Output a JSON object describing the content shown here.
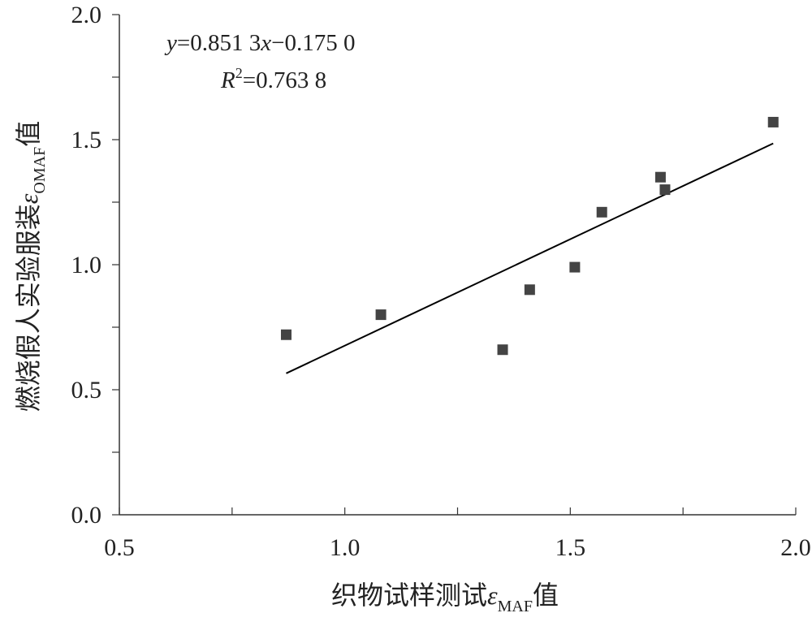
{
  "chart_data": {
    "type": "scatter",
    "title": "",
    "xlabel_parts": {
      "prefix": "织物试样测试",
      "symbol": "ε",
      "subscript": "MAF",
      "suffix": "值"
    },
    "ylabel_parts": {
      "prefix": "燃烧假人实验服装",
      "symbol": "ε",
      "subscript": "OMAF",
      "suffix": "值"
    },
    "xlim": [
      0.5,
      2.0
    ],
    "ylim": [
      0.0,
      2.0
    ],
    "x_major_ticks": [
      0.5,
      1.0,
      1.5,
      2.0
    ],
    "y_major_ticks": [
      0.0,
      0.5,
      1.0,
      1.5,
      2.0
    ],
    "x_tick_labels": [
      "0.5",
      "1.0",
      "1.5",
      "2.0"
    ],
    "y_tick_labels": [
      "0.0",
      "0.5",
      "1.0",
      "1.5",
      "2.0"
    ],
    "grid": false,
    "marker": "square",
    "marker_color": "#444444",
    "line_color": "#000000",
    "points": [
      {
        "x": 0.87,
        "y": 0.72
      },
      {
        "x": 1.08,
        "y": 0.8
      },
      {
        "x": 1.35,
        "y": 0.66
      },
      {
        "x": 1.41,
        "y": 0.9
      },
      {
        "x": 1.51,
        "y": 0.99
      },
      {
        "x": 1.57,
        "y": 1.21
      },
      {
        "x": 1.7,
        "y": 1.35
      },
      {
        "x": 1.71,
        "y": 1.3
      },
      {
        "x": 1.95,
        "y": 1.57
      }
    ],
    "trendline": {
      "slope": 0.8513,
      "intercept": -0.175,
      "x_range": [
        0.87,
        1.95
      ],
      "equation_label": {
        "y": "y",
        "eq1": "=0.851 3",
        "x": "x",
        "eq2": "−0.175 0"
      },
      "r2_label": {
        "r": "R",
        "sup": "2",
        "eq": "=0.763 8"
      }
    }
  }
}
